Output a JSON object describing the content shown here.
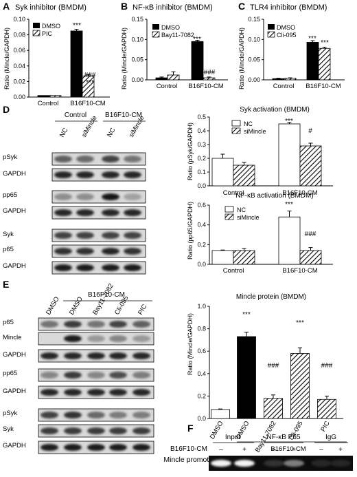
{
  "panels": {
    "A": {
      "letter": "A",
      "title": "Syk inhibitor (BMDM)",
      "ylabel": "Ratio (Mincle/GAPDH)",
      "legend": [
        "DMSO",
        "PIC"
      ],
      "xticks": [
        "Control",
        "B16F10-CM"
      ],
      "yticks": [
        "0.00",
        "0.02",
        "0.04",
        "0.06",
        "0.08",
        "0.10"
      ],
      "sig": [
        "***",
        "###",
        "***"
      ]
    },
    "B": {
      "letter": "B",
      "title": "NF-κB inhibitor (BMDM)",
      "ylabel": "Ratio (Mincle/GAPDH)",
      "legend": [
        "DMSO",
        "Bay11-7082"
      ],
      "xticks": [
        "Control",
        "B16F10-CM"
      ],
      "yticks": [
        "0.00",
        "0.05",
        "0.10",
        "0.15"
      ],
      "sig": [
        "***",
        "###"
      ]
    },
    "C": {
      "letter": "C",
      "title": "TLR4 inhibitor (BMDM)",
      "ylabel": "Ratio (Mincle/GAPDH)",
      "legend": [
        "DMSO",
        "Cli-095"
      ],
      "xticks": [
        "Control",
        "B16F10-CM"
      ],
      "yticks": [
        "0.00",
        "0.05",
        "0.10",
        "0.15"
      ],
      "sig": [
        "***",
        "***"
      ]
    },
    "D": {
      "letter": "D",
      "group_labels": [
        "Control",
        "B16F10-CM"
      ],
      "lanes": [
        "NC",
        "siMincle",
        "NC",
        "siMincle"
      ],
      "blots": [
        "pSyk",
        "GAPDH",
        "pp65",
        "GAPDH",
        "Syk",
        "p65",
        "GAPDH"
      ]
    },
    "D1": {
      "title": "Syk activation (BMDM)",
      "ylabel": "Ratio (pSyk/GAPDH)",
      "legend": [
        "NC",
        "siMincle"
      ],
      "xticks": [
        "Control",
        "B16F10-CM"
      ],
      "yticks": [
        "0.0",
        "0.1",
        "0.2",
        "0.3",
        "0.4",
        "0.5"
      ],
      "sig": [
        "***",
        "#"
      ]
    },
    "D2": {
      "title": "NF-κB activation (BMDM)",
      "ylabel": "Ratio (pp65/GAPDH)",
      "legend": [
        "NC",
        "siMincle"
      ],
      "xticks": [
        "Control",
        "B16F10-CM"
      ],
      "yticks": [
        "0.0",
        "0.2",
        "0.4",
        "0.6"
      ],
      "sig": [
        "***",
        "###"
      ]
    },
    "E": {
      "letter": "E",
      "group_label": "B16F10-CM",
      "lanes": [
        "DMSO",
        "DMSO",
        "Bay11-7082",
        "Cli-095",
        "PIC"
      ],
      "blots": [
        "p65",
        "Mincle",
        "GAPDH",
        "pp65",
        "GAPDH",
        "pSyk",
        "Syk",
        "GAPDH"
      ]
    },
    "E1": {
      "title": "Mincle protein (BMDM)",
      "ylabel": "Ratio (Mincle/GAPDH)",
      "xticks": [
        "DMSO",
        "DMSO",
        "Bay11-7082",
        "Cli-095",
        "PIC"
      ],
      "group_label": "B16F10-CM",
      "yticks": [
        "0.0",
        "0.2",
        "0.4",
        "0.6",
        "0.8",
        "1.0"
      ],
      "sig": [
        "***",
        "###",
        "***",
        "###"
      ]
    },
    "F": {
      "letter": "F",
      "groups": [
        "Input",
        "NF-κB P65",
        "IgG"
      ],
      "row_label": "B16F10-CM",
      "signs": [
        "–",
        "+",
        "–",
        "+",
        "–",
        "+"
      ],
      "lane_label": "Mincle promoter"
    }
  },
  "chart_data": [
    {
      "type": "bar",
      "title": "Syk inhibitor (BMDM)",
      "ylabel": "Ratio (Mincle/GAPDH)",
      "ylim": [
        0,
        0.1
      ],
      "categories": [
        "Control",
        "B16F10-CM"
      ],
      "series": [
        {
          "name": "DMSO",
          "values": [
            0.002,
            0.085
          ]
        },
        {
          "name": "PIC",
          "values": [
            0.002,
            0.027
          ]
        }
      ]
    },
    {
      "type": "bar",
      "title": "NF-κB inhibitor (BMDM)",
      "ylabel": "Ratio (Mincle/GAPDH)",
      "ylim": [
        0,
        0.15
      ],
      "categories": [
        "Control",
        "B16F10-CM"
      ],
      "series": [
        {
          "name": "DMSO",
          "values": [
            0.005,
            0.095
          ]
        },
        {
          "name": "Bay11-7082",
          "values": [
            0.012,
            0.005
          ]
        }
      ]
    },
    {
      "type": "bar",
      "title": "TLR4 inhibitor (BMDM)",
      "ylabel": "Ratio (Mincle/GAPDH)",
      "ylim": [
        0,
        0.15
      ],
      "categories": [
        "Control",
        "B16F10-CM"
      ],
      "series": [
        {
          "name": "DMSO",
          "values": [
            0.003,
            0.093
          ]
        },
        {
          "name": "Cli-095",
          "values": [
            0.004,
            0.078
          ]
        }
      ]
    },
    {
      "type": "bar",
      "title": "Syk activation (BMDM)",
      "ylabel": "Ratio (pSyk/GAPDH)",
      "ylim": [
        0,
        0.5
      ],
      "categories": [
        "Control",
        "B16F10-CM"
      ],
      "series": [
        {
          "name": "NC",
          "values": [
            0.2,
            0.45
          ]
        },
        {
          "name": "siMincle",
          "values": [
            0.15,
            0.29
          ]
        }
      ]
    },
    {
      "type": "bar",
      "title": "NF-κB activation (BMDM)",
      "ylabel": "Ratio (pp65/GAPDH)",
      "ylim": [
        0,
        0.6
      ],
      "categories": [
        "Control",
        "B16F10-CM"
      ],
      "series": [
        {
          "name": "NC",
          "values": [
            0.14,
            0.48
          ]
        },
        {
          "name": "siMincle",
          "values": [
            0.14,
            0.14
          ]
        }
      ]
    },
    {
      "type": "bar",
      "title": "Mincle protein (BMDM)",
      "ylabel": "Ratio (Mincle/GAPDH)",
      "ylim": [
        0,
        1.0
      ],
      "categories": [
        "DMSO",
        "DMSO",
        "Bay11-7082",
        "Cli-095",
        "PIC"
      ],
      "series": [
        {
          "values": [
            0.08,
            0.73,
            0.18,
            0.58,
            0.17
          ]
        }
      ]
    }
  ]
}
